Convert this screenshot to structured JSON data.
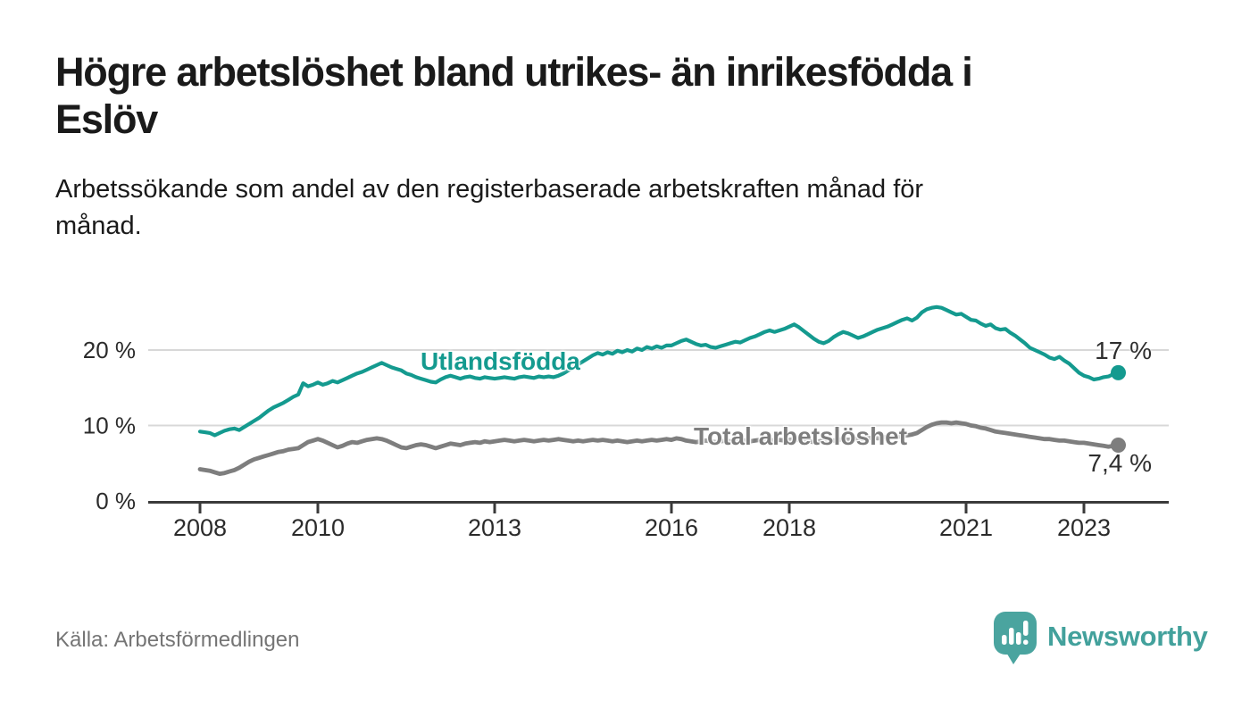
{
  "header": {
    "title": "Högre arbetslöshet bland utrikes- än inrikesfödda i\nEslöv",
    "subtitle": "Arbetssökande som andel av den registerbaserade arbetskraften månad för\nmånad."
  },
  "footer": {
    "source": "Källa: Arbetsförmedlingen",
    "logo_text": "Newsworthy",
    "logo_icon": "newsworthy-speech-bubble-bar-chart-icon"
  },
  "colors": {
    "foreign_born_line": "#149a8f",
    "total_line": "#7e7e7e",
    "logo_teal": "#4aa49f",
    "gridline": "#d8d8d8",
    "axis": "#3a3a3a",
    "tick_text": "#2b2b2b",
    "title_text": "#1a1a1a",
    "source_text": "#757575"
  },
  "chart_data": {
    "type": "line",
    "unit": "%",
    "x_start_year": 2008,
    "x_step_months": 1,
    "x_end_label_year": "2023 (august)",
    "x_ticks": [
      2008,
      2010,
      2013,
      2016,
      2018,
      2021,
      2023
    ],
    "y_ticks": [
      {
        "value": 0,
        "label": "0 %"
      },
      {
        "value": 10,
        "label": "10 %"
      },
      {
        "value": 20,
        "label": "20 %"
      }
    ],
    "gridlines_at": [
      10,
      20
    ],
    "ylim": [
      0,
      27
    ],
    "grid": true,
    "legend_position": "inline-series-labels",
    "series": [
      {
        "name": "Utlandsfödda",
        "label_text": "Utlandsfödda",
        "end_label": "17 %",
        "end_value": 17,
        "color": "#149a8f",
        "values": [
          9.2,
          9.1,
          9.0,
          8.7,
          9.0,
          9.3,
          9.5,
          9.6,
          9.4,
          9.8,
          10.2,
          10.6,
          11.0,
          11.5,
          12.0,
          12.4,
          12.7,
          13.0,
          13.4,
          13.8,
          14.1,
          15.6,
          15.2,
          15.4,
          15.7,
          15.4,
          15.6,
          15.9,
          15.7,
          16.0,
          16.3,
          16.6,
          16.9,
          17.1,
          17.4,
          17.7,
          18.0,
          18.3,
          18.0,
          17.7,
          17.5,
          17.3,
          16.9,
          16.7,
          16.4,
          16.2,
          16.0,
          15.8,
          15.7,
          16.1,
          16.4,
          16.6,
          16.4,
          16.2,
          16.4,
          16.5,
          16.3,
          16.2,
          16.4,
          16.3,
          16.2,
          16.3,
          16.4,
          16.3,
          16.2,
          16.4,
          16.5,
          16.4,
          16.3,
          16.5,
          16.4,
          16.5,
          16.4,
          16.6,
          16.9,
          17.3,
          17.7,
          18.1,
          18.5,
          18.9,
          19.3,
          19.6,
          19.4,
          19.7,
          19.5,
          19.9,
          19.7,
          20.0,
          19.8,
          20.2,
          20.0,
          20.4,
          20.2,
          20.5,
          20.3,
          20.6,
          20.6,
          20.9,
          21.2,
          21.4,
          21.1,
          20.8,
          20.6,
          20.7,
          20.4,
          20.3,
          20.5,
          20.7,
          20.9,
          21.1,
          21.0,
          21.3,
          21.6,
          21.8,
          22.1,
          22.4,
          22.6,
          22.4,
          22.6,
          22.8,
          23.1,
          23.4,
          23.0,
          22.5,
          22.0,
          21.5,
          21.1,
          20.9,
          21.2,
          21.7,
          22.1,
          22.4,
          22.2,
          21.9,
          21.6,
          21.8,
          22.1,
          22.4,
          22.7,
          22.9,
          23.1,
          23.4,
          23.7,
          24.0,
          24.2,
          23.9,
          24.3,
          25.0,
          25.4,
          25.6,
          25.7,
          25.6,
          25.3,
          25.0,
          24.7,
          24.8,
          24.4,
          24.0,
          23.9,
          23.5,
          23.2,
          23.4,
          22.9,
          22.7,
          22.8,
          22.3,
          21.9,
          21.4,
          20.9,
          20.3,
          20.0,
          19.7,
          19.4,
          19.0,
          18.8,
          19.1,
          18.6,
          18.2,
          17.6,
          17.0,
          16.6,
          16.4,
          16.1,
          16.2,
          16.4,
          16.5,
          16.8,
          17.0
        ]
      },
      {
        "name": "Total arbetslöshet",
        "label_text": "Total arbetslöshet",
        "end_label": "7,4 %",
        "end_value": 7.4,
        "color": "#7e7e7e",
        "values": [
          4.2,
          4.1,
          4.0,
          3.8,
          3.6,
          3.7,
          3.9,
          4.1,
          4.4,
          4.8,
          5.2,
          5.5,
          5.7,
          5.9,
          6.1,
          6.3,
          6.5,
          6.6,
          6.8,
          6.9,
          7.0,
          7.4,
          7.8,
          8.0,
          8.2,
          8.0,
          7.7,
          7.4,
          7.1,
          7.3,
          7.6,
          7.8,
          7.7,
          7.9,
          8.1,
          8.2,
          8.3,
          8.2,
          8.0,
          7.7,
          7.4,
          7.1,
          7.0,
          7.2,
          7.4,
          7.5,
          7.4,
          7.2,
          7.0,
          7.2,
          7.4,
          7.6,
          7.5,
          7.4,
          7.6,
          7.7,
          7.8,
          7.7,
          7.9,
          7.8,
          7.9,
          8.0,
          8.1,
          8.0,
          7.9,
          8.0,
          8.1,
          8.0,
          7.9,
          8.0,
          8.1,
          8.0,
          8.1,
          8.2,
          8.1,
          8.0,
          7.9,
          8.0,
          7.9,
          8.0,
          8.1,
          8.0,
          8.1,
          8.0,
          7.9,
          8.0,
          7.9,
          7.8,
          7.9,
          8.0,
          7.9,
          8.0,
          8.1,
          8.0,
          8.1,
          8.2,
          8.1,
          8.3,
          8.2,
          8.0,
          7.9,
          7.8,
          7.9,
          8.0,
          7.9,
          7.8,
          7.9,
          8.0,
          7.9,
          8.0,
          8.1,
          8.0,
          7.9,
          8.0,
          8.1,
          8.2,
          8.1,
          8.0,
          8.1,
          8.0,
          8.1,
          8.2,
          8.1,
          8.0,
          7.9,
          7.8,
          7.9,
          8.0,
          8.1,
          8.0,
          8.1,
          8.2,
          8.1,
          8.2,
          8.3,
          8.2,
          8.3,
          8.4,
          8.3,
          8.4,
          8.5,
          8.4,
          8.5,
          8.6,
          8.7,
          8.8,
          9.0,
          9.4,
          9.8,
          10.1,
          10.3,
          10.4,
          10.4,
          10.3,
          10.4,
          10.3,
          10.2,
          10.0,
          9.9,
          9.7,
          9.6,
          9.4,
          9.2,
          9.1,
          9.0,
          8.9,
          8.8,
          8.7,
          8.6,
          8.5,
          8.4,
          8.3,
          8.2,
          8.2,
          8.1,
          8.0,
          8.0,
          7.9,
          7.8,
          7.7,
          7.7,
          7.6,
          7.5,
          7.4,
          7.3,
          7.2,
          7.3,
          7.4
        ]
      }
    ]
  }
}
